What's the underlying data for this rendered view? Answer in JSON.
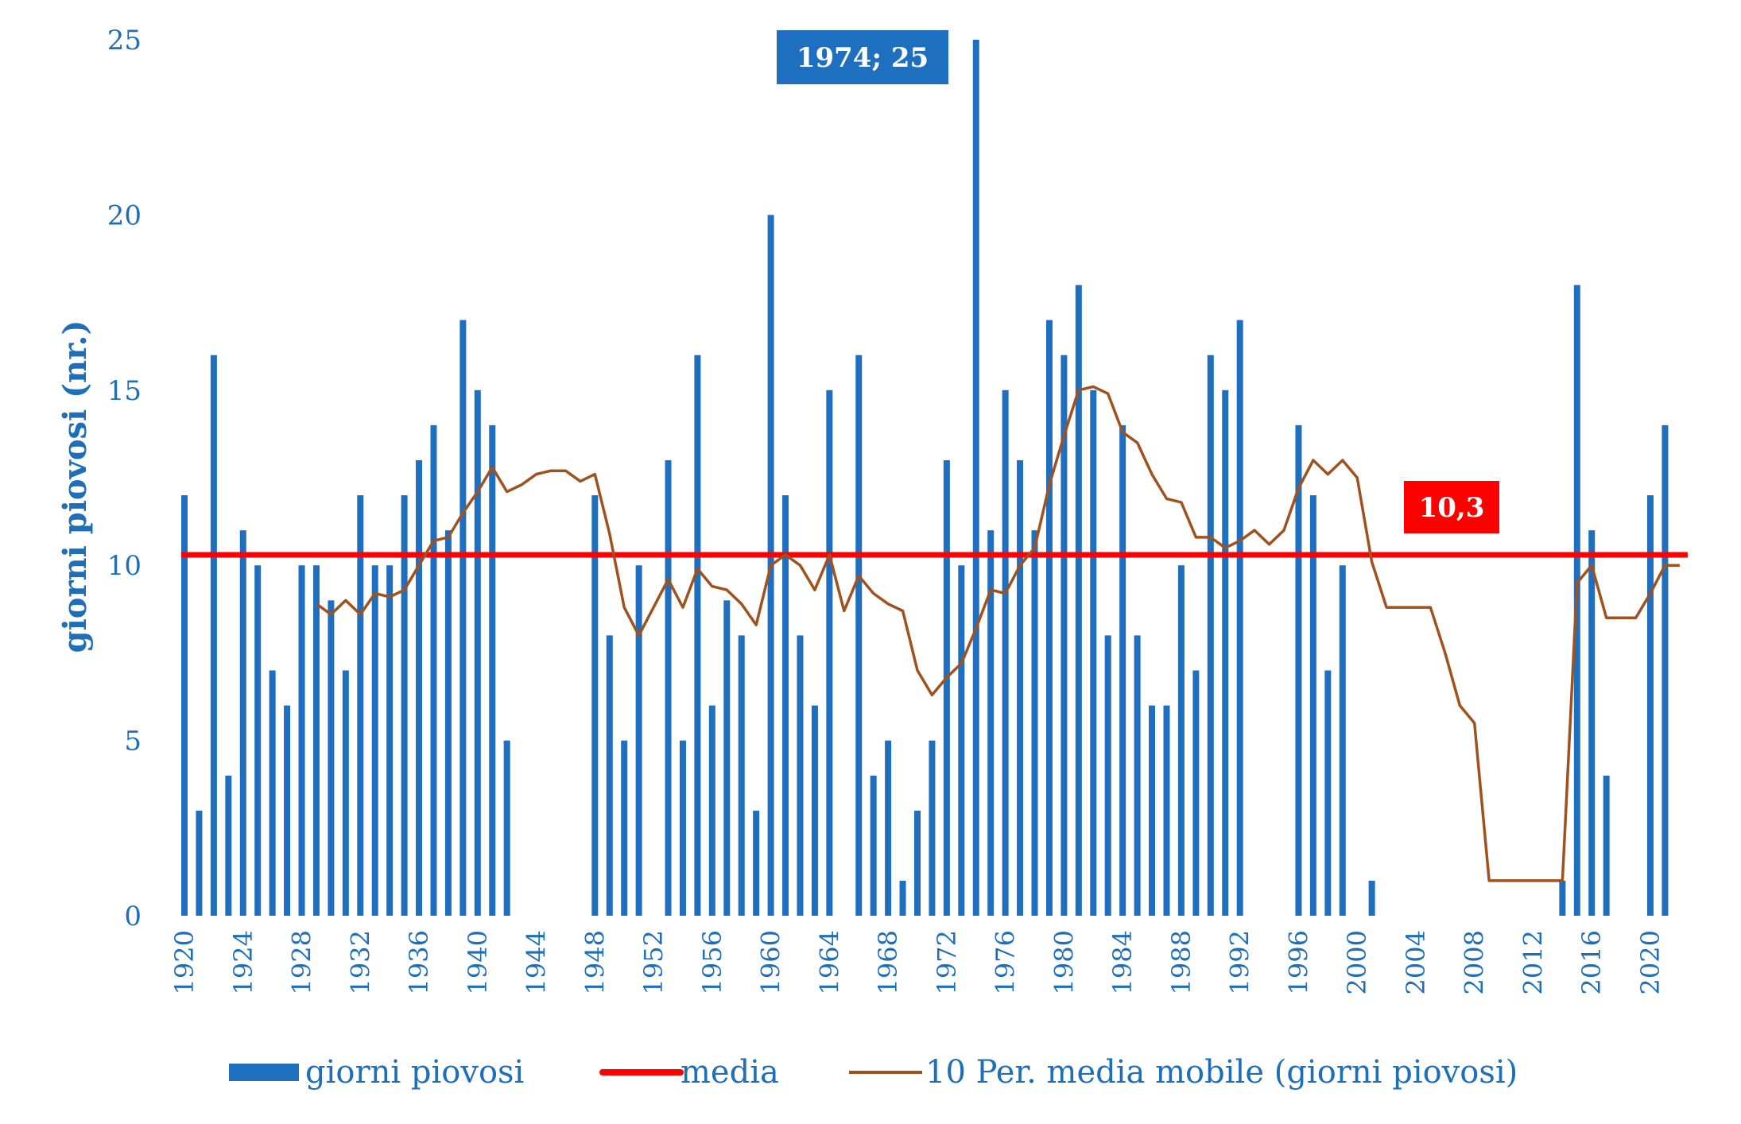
{
  "chart_data": {
    "type": "bar",
    "ylabel": "giorni piovosi (nr.)",
    "xlabel": "",
    "ylim": [
      0,
      25
    ],
    "yticks": [
      0,
      5,
      10,
      15,
      20,
      25
    ],
    "x_tick_labels": [
      "1920",
      "1924",
      "1928",
      "1932",
      "1936",
      "1940",
      "1944",
      "1948",
      "1952",
      "1956",
      "1960",
      "1964",
      "1968",
      "1972",
      "1976",
      "1980",
      "1984",
      "1988",
      "1992",
      "1996",
      "2000",
      "2004",
      "2008",
      "2012",
      "2016",
      "2020"
    ],
    "years": [
      1920,
      1921,
      1922,
      1923,
      1924,
      1925,
      1926,
      1927,
      1928,
      1929,
      1930,
      1931,
      1932,
      1933,
      1934,
      1935,
      1936,
      1937,
      1938,
      1939,
      1940,
      1941,
      1942,
      1943,
      1944,
      1945,
      1946,
      1947,
      1948,
      1949,
      1950,
      1951,
      1952,
      1953,
      1954,
      1955,
      1956,
      1957,
      1958,
      1959,
      1960,
      1961,
      1962,
      1963,
      1964,
      1965,
      1966,
      1967,
      1968,
      1969,
      1970,
      1971,
      1972,
      1973,
      1974,
      1975,
      1976,
      1977,
      1978,
      1979,
      1980,
      1981,
      1982,
      1983,
      1984,
      1985,
      1986,
      1987,
      1988,
      1989,
      1990,
      1991,
      1992,
      1993,
      1994,
      1995,
      1996,
      1997,
      1998,
      1999,
      2000,
      2001,
      2002,
      2003,
      2004,
      2005,
      2006,
      2007,
      2008,
      2009,
      2010,
      2011,
      2012,
      2013,
      2014,
      2015,
      2016,
      2017,
      2018,
      2019,
      2020,
      2021,
      2022
    ],
    "series": [
      {
        "name": "giorni piovosi",
        "type": "bar",
        "color": "#1f6fc0",
        "values": [
          12,
          3,
          16,
          4,
          11,
          10,
          7,
          6,
          10,
          10,
          9,
          7,
          12,
          10,
          10,
          12,
          13,
          14,
          11,
          17,
          15,
          14,
          5,
          null,
          null,
          null,
          null,
          null,
          12,
          8,
          5,
          10,
          null,
          13,
          5,
          16,
          6,
          9,
          8,
          3,
          20,
          12,
          8,
          6,
          15,
          null,
          16,
          4,
          5,
          1,
          3,
          5,
          13,
          10,
          25,
          11,
          15,
          13,
          11,
          17,
          16,
          18,
          15,
          8,
          14,
          8,
          6,
          6,
          10,
          7,
          16,
          15,
          17,
          null,
          null,
          null,
          14,
          12,
          7,
          10,
          null,
          1,
          null,
          null,
          null,
          null,
          null,
          null,
          null,
          null,
          null,
          null,
          null,
          null,
          1,
          18,
          11,
          4,
          null,
          null,
          12,
          14,
          null
        ]
      },
      {
        "name": "media",
        "type": "hline",
        "color": "#ff0000",
        "value": 10.3
      },
      {
        "name": "10 Per. media mobile (giorni piovosi)",
        "type": "line",
        "color": "#a0521e",
        "values": [
          null,
          null,
          null,
          null,
          null,
          null,
          null,
          null,
          null,
          8.9,
          8.6,
          9.0,
          8.6,
          9.2,
          9.1,
          9.3,
          10.0,
          10.7,
          10.8,
          11.5,
          12.1,
          12.8,
          12.1,
          12.3,
          12.6,
          12.7,
          12.7,
          12.4,
          12.6,
          10.9,
          8.8,
          8.0,
          8.8,
          9.6,
          8.8,
          9.9,
          9.4,
          9.3,
          8.9,
          8.3,
          10.0,
          10.3,
          10.0,
          9.3,
          10.3,
          8.7,
          9.7,
          9.2,
          8.9,
          8.7,
          7.0,
          6.3,
          6.8,
          7.2,
          8.2,
          9.3,
          9.2,
          10.0,
          10.5,
          12.3,
          13.7,
          15.0,
          15.1,
          14.9,
          13.8,
          13.5,
          12.6,
          11.9,
          11.8,
          10.8,
          10.8,
          10.5,
          10.7,
          11.0,
          10.6,
          11.0,
          12.2,
          13.0,
          12.6,
          13.0,
          12.5,
          10.1,
          8.8,
          8.8,
          8.8,
          8.8,
          7.5,
          6.0,
          5.5,
          1.0,
          1.0,
          1.0,
          1.0,
          1.0,
          1.0,
          9.5,
          10.0,
          8.5,
          8.5,
          8.5,
          9.2,
          10.0,
          10.0
        ]
      }
    ],
    "annotations": [
      {
        "label": "1974; 25",
        "color": "#1f6fc0"
      },
      {
        "label": "10,3",
        "color": "#ff0000"
      }
    ],
    "legend_position": "bottom",
    "grid": false
  }
}
